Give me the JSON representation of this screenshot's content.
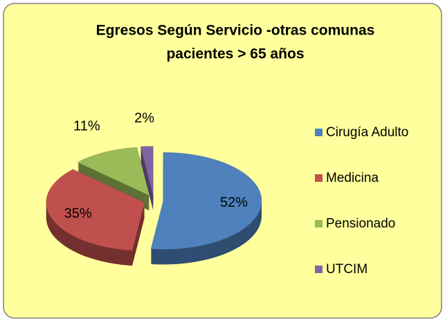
{
  "chart_data": {
    "type": "pie",
    "title": [
      "Egresos Según  Servicio -otras comunas",
      "pacientes > 65 años"
    ],
    "categories": [
      "Cirugía Adulto",
      "Medicina",
      "Pensionado",
      "UTCIM"
    ],
    "values": [
      52,
      35,
      11,
      2
    ],
    "value_labels": [
      "52%",
      "35%",
      "11%",
      "2%"
    ],
    "colors": [
      "#4f81bd",
      "#c0504d",
      "#9bbb59",
      "#8064a2"
    ],
    "legend": "right"
  }
}
